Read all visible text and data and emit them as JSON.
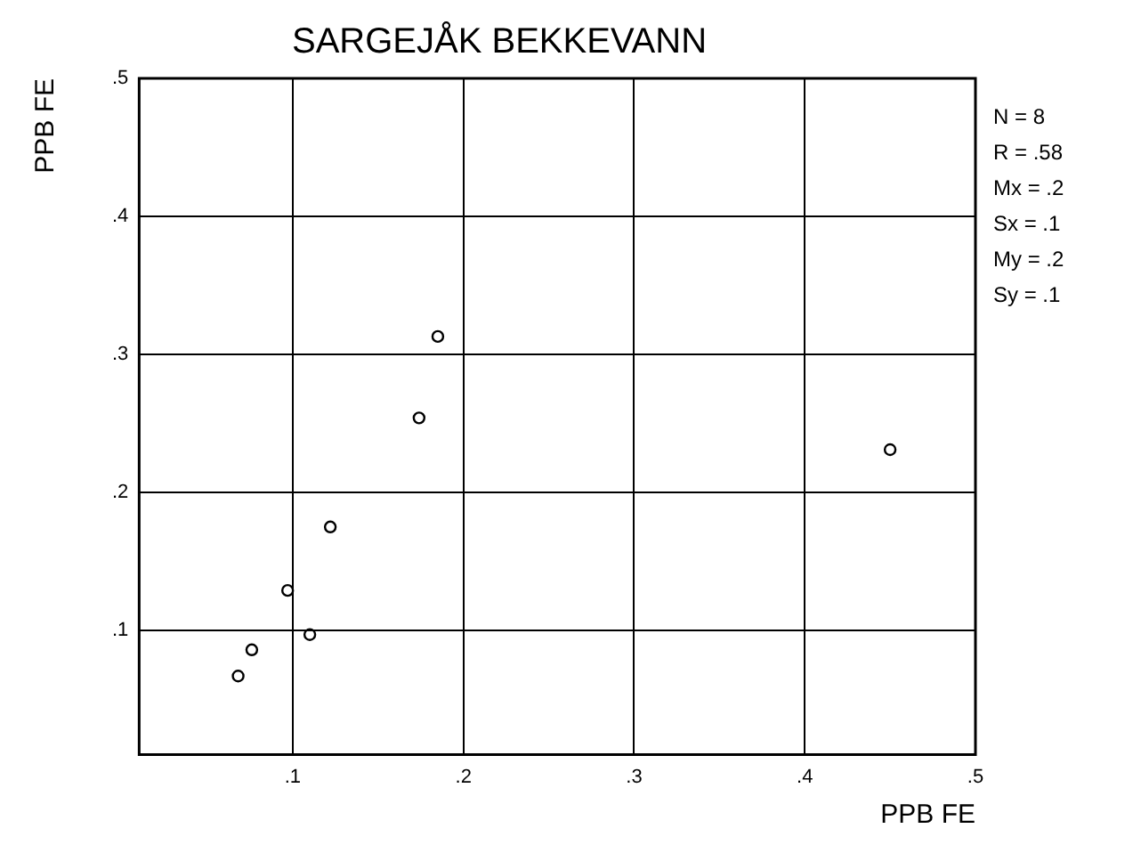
{
  "chart_data": {
    "type": "scatter",
    "title": "SARGEJÅK BEKKEVANN",
    "xlabel": "PPB FE",
    "ylabel": "PPB FE",
    "x": [
      0.068,
      0.076,
      0.097,
      0.11,
      0.122,
      0.174,
      0.185,
      0.45
    ],
    "values": [
      0.067,
      0.086,
      0.129,
      0.097,
      0.175,
      0.254,
      0.313,
      0.231
    ],
    "color": "#000000",
    "marker": "circle",
    "xlim": [
      0.01,
      0.5
    ],
    "ylim": [
      0.01,
      0.5
    ],
    "xticks": [
      {
        "value": 0.1,
        "label": ".1"
      },
      {
        "value": 0.2,
        "label": ".2"
      },
      {
        "value": 0.3,
        "label": ".3"
      },
      {
        "value": 0.4,
        "label": ".4"
      },
      {
        "value": 0.5,
        "label": ".5"
      }
    ],
    "yticks": [
      {
        "value": 0.1,
        "label": ".1"
      },
      {
        "value": 0.2,
        "label": ".2"
      },
      {
        "value": 0.3,
        "label": ".3"
      },
      {
        "value": 0.4,
        "label": ".4"
      },
      {
        "value": 0.5,
        "label": ".5"
      }
    ],
    "grid": true,
    "annotations": [
      "N = 8",
      "R = .58",
      "Mx = .2",
      "Sx = .1",
      "My = .2",
      "Sy = .1"
    ]
  }
}
